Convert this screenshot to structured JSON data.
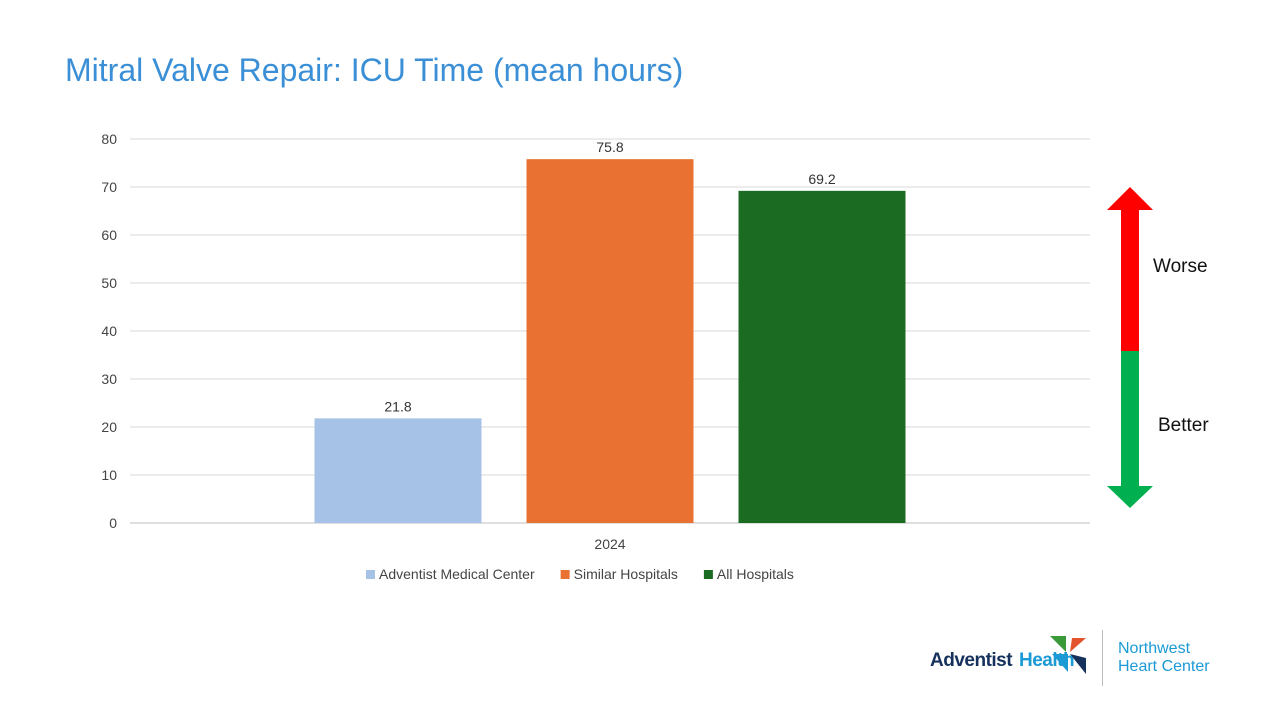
{
  "title": "Mitral Valve Repair: ICU Time (mean hours)",
  "chart_data": {
    "type": "bar",
    "title": "Mitral Valve Repair: ICU Time (mean hours)",
    "categories": [
      "2024"
    ],
    "series": [
      {
        "name": "Adventist Medical Center",
        "values": [
          21.8
        ],
        "color": "#a6c2e6"
      },
      {
        "name": "Similar Hospitals",
        "values": [
          75.8
        ],
        "color": "#e97132"
      },
      {
        "name": "All Hospitals",
        "values": [
          69.2
        ],
        "color": "#1c6b23"
      }
    ],
    "ylim": [
      0,
      80
    ],
    "yticks": [
      0,
      10,
      20,
      30,
      40,
      50,
      60,
      70,
      80
    ],
    "grid": true,
    "legend": "bottom",
    "xlabel": "",
    "ylabel": ""
  },
  "indicator": {
    "worse": "Worse",
    "better": "Better",
    "worse_color": "#ff0000",
    "better_color": "#00b050"
  },
  "logo": {
    "brand_part1": "Adventist",
    "brand_part2": "Health",
    "center_line1": "Northwest",
    "center_line2": "Heart Center"
  }
}
